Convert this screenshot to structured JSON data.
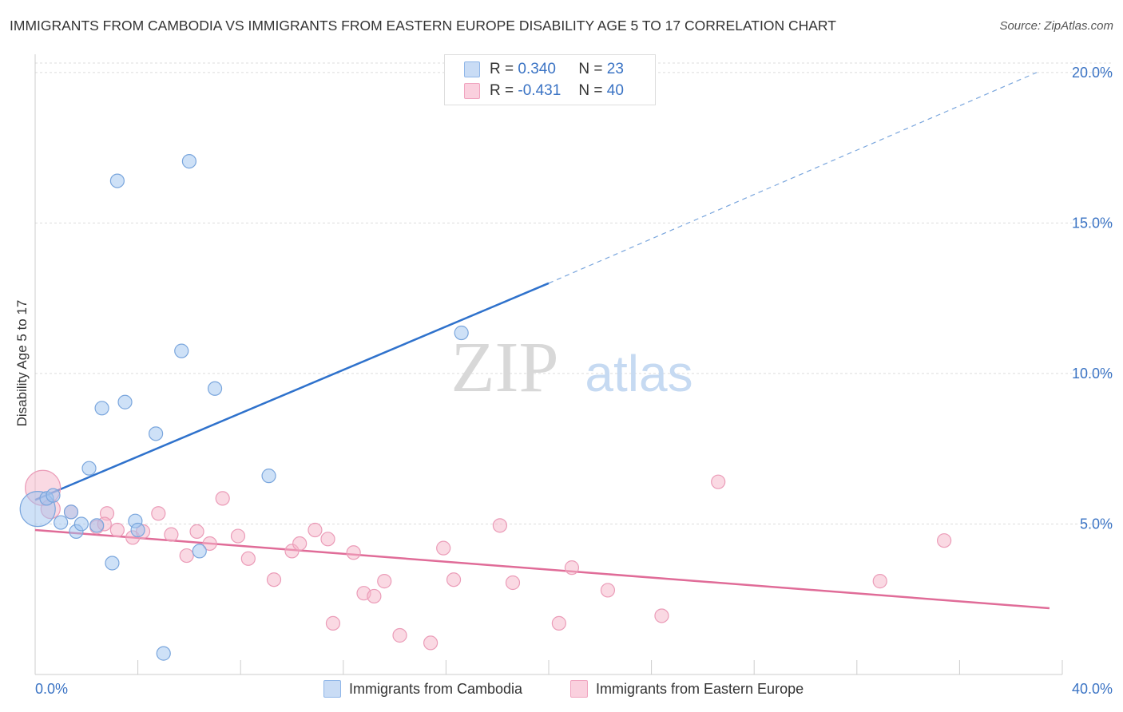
{
  "header": {
    "title": "IMMIGRANTS FROM CAMBODIA VS IMMIGRANTS FROM EASTERN EUROPE DISABILITY AGE 5 TO 17 CORRELATION CHART",
    "source": "Source: ZipAtlas.com"
  },
  "watermark": {
    "zip": "ZIP",
    "atlas": "atlas"
  },
  "stats": [
    {
      "r_label": "R =",
      "r_value": "0.340",
      "n_label": "N =",
      "n_value": "23",
      "color": "#9ec3f0"
    },
    {
      "r_label": "R =",
      "r_value": "-0.431",
      "n_label": "N =",
      "n_value": "40",
      "color": "#f5b3c8"
    }
  ],
  "legend": [
    {
      "label": "Immigrants from Cambodia",
      "color": "#9ec3f0"
    },
    {
      "label": "Immigrants from Eastern Europe",
      "color": "#f5b3c8"
    }
  ],
  "chart_data": {
    "type": "scatter",
    "title": "IMMIGRANTS FROM CAMBODIA VS IMMIGRANTS FROM EASTERN EUROPE DISABILITY AGE 5 TO 17 CORRELATION CHART",
    "xlabel": "",
    "ylabel": "Disability Age 5 to 17",
    "xlim": [
      0,
      40
    ],
    "ylim": [
      0,
      20.5
    ],
    "x_tick_labels": [
      "0.0%",
      "40.0%"
    ],
    "y_ticks": [
      5,
      10,
      15,
      20
    ],
    "y_tick_labels": [
      "5.0%",
      "10.0%",
      "15.0%",
      "20.0%"
    ],
    "grid": true,
    "legend_position": "bottom",
    "series": [
      {
        "name": "Immigrants from Cambodia",
        "color": "#9ec3f0",
        "line_color": "#2f72cc",
        "trend": {
          "x": [
            0,
            20
          ],
          "y": [
            5.8,
            13.0
          ],
          "extended_to_x": 39,
          "extended_y": 20.0
        },
        "points": [
          {
            "x": 0.1,
            "y": 5.5,
            "size": "large"
          },
          {
            "x": 0.45,
            "y": 5.85
          },
          {
            "x": 0.7,
            "y": 5.95
          },
          {
            "x": 1.0,
            "y": 5.05
          },
          {
            "x": 1.4,
            "y": 5.4
          },
          {
            "x": 1.6,
            "y": 4.75
          },
          {
            "x": 1.8,
            "y": 5.0
          },
          {
            "x": 2.1,
            "y": 6.85
          },
          {
            "x": 2.6,
            "y": 8.85
          },
          {
            "x": 3.0,
            "y": 3.7
          },
          {
            "x": 3.2,
            "y": 16.4
          },
          {
            "x": 3.5,
            "y": 9.05
          },
          {
            "x": 3.9,
            "y": 5.1
          },
          {
            "x": 4.0,
            "y": 4.8
          },
          {
            "x": 4.7,
            "y": 8.0
          },
          {
            "x": 5.0,
            "y": 0.7
          },
          {
            "x": 5.7,
            "y": 10.75
          },
          {
            "x": 6.0,
            "y": 17.05
          },
          {
            "x": 6.4,
            "y": 4.1
          },
          {
            "x": 7.0,
            "y": 9.5
          },
          {
            "x": 9.1,
            "y": 6.6
          },
          {
            "x": 16.6,
            "y": 11.35
          },
          {
            "x": 2.4,
            "y": 4.95
          }
        ]
      },
      {
        "name": "Immigrants from Eastern Europe",
        "color": "#f5b3c8",
        "line_color": "#e06c98",
        "trend": {
          "x": [
            0,
            39.5
          ],
          "y": [
            4.8,
            2.2
          ]
        },
        "points": [
          {
            "x": 0.3,
            "y": 6.2,
            "size": "large"
          },
          {
            "x": 0.6,
            "y": 5.5,
            "size": "medium"
          },
          {
            "x": 1.4,
            "y": 5.4
          },
          {
            "x": 2.4,
            "y": 4.9
          },
          {
            "x": 2.8,
            "y": 5.35
          },
          {
            "x": 3.2,
            "y": 4.8
          },
          {
            "x": 3.8,
            "y": 4.55
          },
          {
            "x": 4.2,
            "y": 4.75
          },
          {
            "x": 4.8,
            "y": 5.35
          },
          {
            "x": 5.3,
            "y": 4.65
          },
          {
            "x": 5.9,
            "y": 3.95
          },
          {
            "x": 6.3,
            "y": 4.75
          },
          {
            "x": 6.8,
            "y": 4.35
          },
          {
            "x": 7.3,
            "y": 5.85
          },
          {
            "x": 7.9,
            "y": 4.6
          },
          {
            "x": 8.3,
            "y": 3.85
          },
          {
            "x": 9.3,
            "y": 3.15
          },
          {
            "x": 10.0,
            "y": 4.1
          },
          {
            "x": 10.3,
            "y": 4.35
          },
          {
            "x": 10.9,
            "y": 4.8
          },
          {
            "x": 11.4,
            "y": 4.5
          },
          {
            "x": 11.6,
            "y": 1.7
          },
          {
            "x": 12.4,
            "y": 4.05
          },
          {
            "x": 12.8,
            "y": 2.7
          },
          {
            "x": 13.2,
            "y": 2.6
          },
          {
            "x": 13.6,
            "y": 3.1
          },
          {
            "x": 14.2,
            "y": 1.3
          },
          {
            "x": 15.4,
            "y": 1.05
          },
          {
            "x": 15.9,
            "y": 4.2
          },
          {
            "x": 16.3,
            "y": 3.15
          },
          {
            "x": 18.1,
            "y": 4.95
          },
          {
            "x": 18.6,
            "y": 3.05
          },
          {
            "x": 20.4,
            "y": 1.7
          },
          {
            "x": 20.9,
            "y": 3.55
          },
          {
            "x": 22.3,
            "y": 2.8
          },
          {
            "x": 24.4,
            "y": 1.95
          },
          {
            "x": 26.6,
            "y": 6.4
          },
          {
            "x": 32.9,
            "y": 3.1
          },
          {
            "x": 35.4,
            "y": 4.45
          },
          {
            "x": 2.7,
            "y": 5.0
          }
        ]
      }
    ]
  }
}
